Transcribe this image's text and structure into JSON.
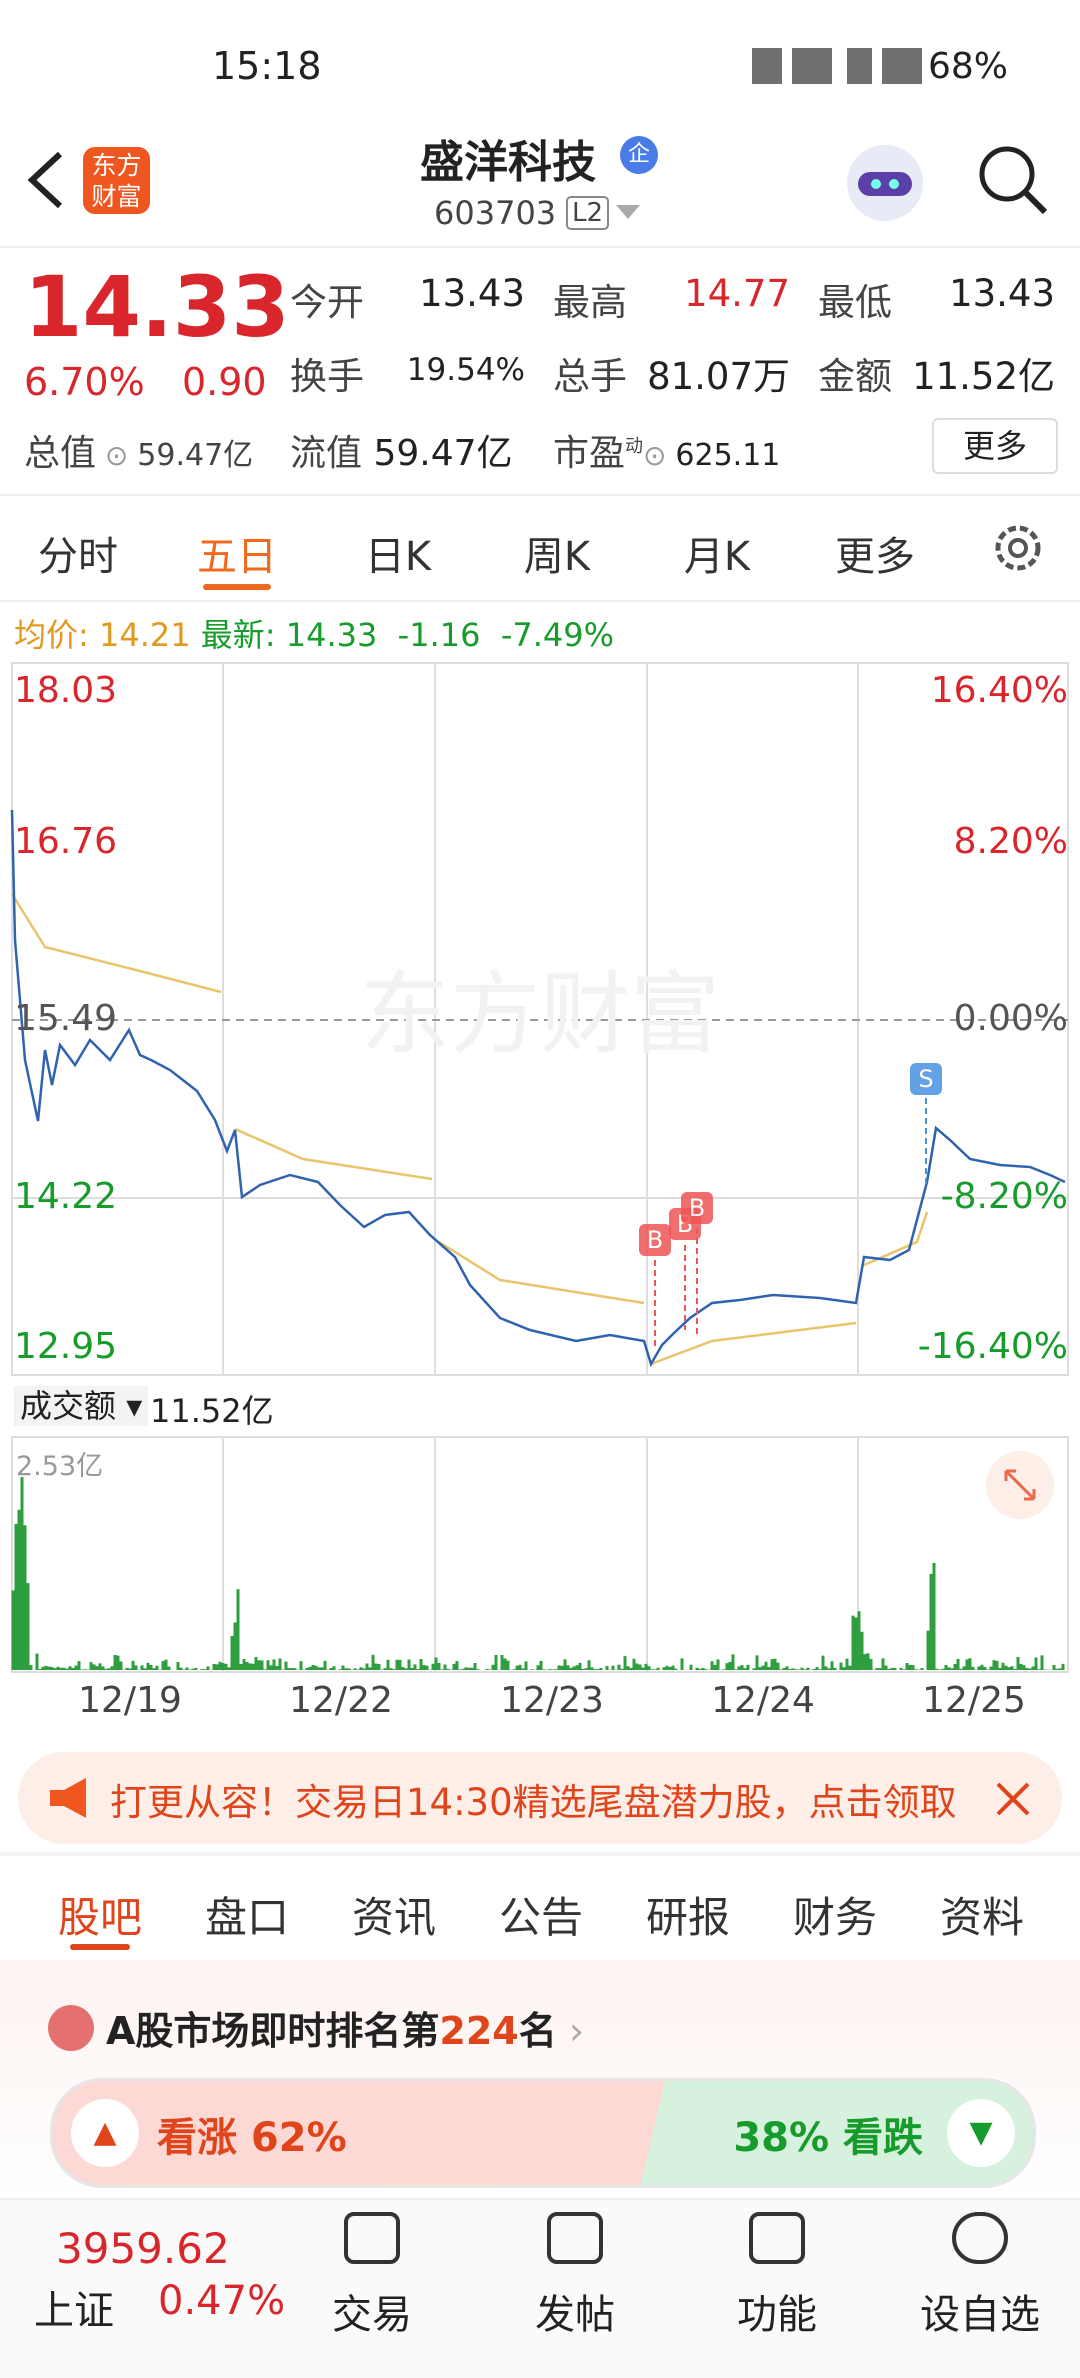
{
  "status_bar": {
    "time": "15:18",
    "battery": "68%"
  },
  "header": {
    "logo": "东方财富",
    "title": "盛洋科技",
    "badge": "企",
    "code": "603703",
    "level": "L2"
  },
  "quote": {
    "price": "14.33",
    "change_pct": "6.70%",
    "change": "0.90",
    "rows": [
      [
        {
          "label": "今开",
          "value": "13.43"
        },
        {
          "label": "最高",
          "value": "14.77"
        },
        {
          "label": "最低",
          "value": "13.43"
        }
      ],
      [
        {
          "label": "换手",
          "value": "19.54%"
        },
        {
          "label": "总手",
          "value": "81.07万"
        },
        {
          "label": "金额",
          "value": "11.52亿"
        }
      ]
    ],
    "total_value": {
      "label": "总值",
      "value": "59.47亿"
    },
    "float_value": {
      "label": "流值",
      "value": "59.47亿"
    },
    "pe": {
      "label": "市盈",
      "sup": "动",
      "value": "625.11"
    },
    "more": "更多"
  },
  "tabs": [
    "分时",
    "五日",
    "日K",
    "周K",
    "月K",
    "更多"
  ],
  "chart": {
    "avg_label": "均价:",
    "avg_value": "14.21",
    "latest_label": "最新:",
    "latest_value": "14.33",
    "latest_change": "-1.16",
    "latest_pct": "-7.49%",
    "price_labels": [
      "18.03",
      "16.76",
      "15.49",
      "14.22",
      "12.95"
    ],
    "pct_labels": [
      "16.40%",
      "8.20%",
      "0.00%",
      "-8.20%",
      "-16.40%"
    ],
    "watermark": "东方财富",
    "buy": "B",
    "sell": "S",
    "volume_label": "成交额",
    "volume_total": "11.52亿",
    "volume_max": "2.53亿",
    "dates": [
      "12/19",
      "12/22",
      "12/23",
      "12/24",
      "12/25"
    ]
  },
  "banner": {
    "text": "打更从容！交易日14:30精选尾盘潜力股，点击领取"
  },
  "sub_tabs": [
    "股吧",
    "盘口",
    "资讯",
    "公告",
    "研报",
    "财务",
    "资料"
  ],
  "ranking": {
    "prefix": "A股市场即时排名第",
    "rank": "224",
    "suffix": "名"
  },
  "sentiment": {
    "up": "看涨 62%",
    "down": "38% 看跌"
  },
  "bottom_nav": {
    "index_value": "3959.62",
    "index_name": "上证",
    "index_pct": "0.47%",
    "items": [
      "交易",
      "发帖",
      "功能",
      "设自选"
    ]
  }
}
